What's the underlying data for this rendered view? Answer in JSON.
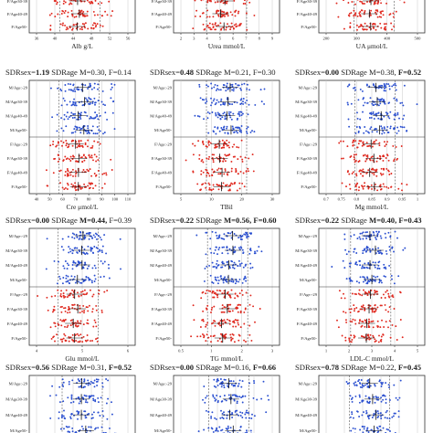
{
  "colors": {
    "male": "#2a4fd0",
    "female": "#e0281e",
    "frame": "#333333",
    "grid": "#c8c8c8",
    "ref": "#555555"
  },
  "row_labels": [
    "M/Age:-29",
    "M/Age30-39",
    "M/Age40-49",
    "M/Age50-",
    "F/Age:-29",
    "F/Age30-39",
    "F/Age40-49",
    "F/Age50-"
  ],
  "top_row_labels": [
    "F/Age30-39",
    "F/Age40-49",
    "F/Age50-"
  ],
  "bottom_row_labels": [
    "M/Age:-29",
    "M/Age30-39",
    "M/Age40-49",
    "M/Age50-"
  ],
  "chart_data": [
    {
      "type": "scatter",
      "panel": "Alb",
      "xlabel": "Alb",
      "unit": "g/L",
      "ticks": [
        "36",
        "40",
        "44",
        "48",
        "52",
        "56"
      ],
      "header": ""
    },
    {
      "type": "scatter",
      "panel": "Urea",
      "xlabel": "Urea",
      "unit": "mmol/L",
      "ticks": [
        "2",
        "3",
        "4",
        "5",
        "6",
        "7",
        "8",
        "9"
      ],
      "header": ""
    },
    {
      "type": "scatter",
      "panel": "UA",
      "xlabel": "UA",
      "unit": "μmol/L",
      "ticks": [
        "200",
        "300",
        "400",
        "500"
      ],
      "header": ""
    },
    {
      "type": "scatter",
      "panel": "Cre",
      "xlabel": "Cre",
      "unit": "μmol/L",
      "ticks": [
        "40",
        "50",
        "60",
        "70",
        "80",
        "90",
        "100",
        "110"
      ],
      "header": {
        "sex_label": "SDRsex=",
        "sex_value": "1.19",
        "age_label": "SDRage",
        "m_text": "M=0.30,",
        "f_text": "F=0.14"
      }
    },
    {
      "type": "scatter",
      "panel": "TBil",
      "xlabel": "TBil",
      "unit": "",
      "ticks": [
        "5",
        "10",
        "20",
        "30"
      ],
      "header": {
        "sex_label": "SDRsex=",
        "sex_value": "0.48",
        "age_label": "SDRage",
        "m_text": "M=0.21,",
        "f_text": "F=0.30"
      }
    },
    {
      "type": "scatter",
      "panel": "Mg",
      "xlabel": "Mg",
      "unit": "mmol/L",
      "ticks": [
        "0.7",
        "0.75",
        "0.8",
        "0.85",
        "0.9",
        "0.95",
        "1"
      ],
      "header": {
        "sex_label": "SDRsex=",
        "sex_value": "0.00",
        "age_label": "SDRage",
        "m_text": "M=0.38,",
        "f_text": "F=0.52"
      }
    },
    {
      "type": "scatter",
      "panel": "Glu",
      "xlabel": "Glu",
      "unit": "mmol/L",
      "ticks": [
        "4",
        "5",
        "6"
      ],
      "header": {
        "sex_label": "SDRsex=",
        "sex_value": "0.00",
        "age_label": "SDRage",
        "m_text": "M=0.44,",
        "f_text": "F=0.39"
      }
    },
    {
      "type": "scatter",
      "panel": "TG",
      "xlabel": "TG",
      "unit": "mmol/L",
      "ticks": [
        "0.5",
        "1",
        "2",
        "3"
      ],
      "header": {
        "sex_label": "SDRsex=",
        "sex_value": "0.22",
        "age_label": "SDRage",
        "m_text": "M=0.56,",
        "f_text": "F=0.60"
      }
    },
    {
      "type": "scatter",
      "panel": "LDL-C",
      "xlabel": "LDL-C",
      "unit": "mmol/L",
      "ticks": [
        "1",
        "2",
        "3",
        "4",
        "5"
      ],
      "header": {
        "sex_label": "SDRsex=",
        "sex_value": "0.22",
        "age_label": "SDRage",
        "m_text": "M=0.40,",
        "f_text": "F=0.43"
      }
    },
    {
      "type": "scatter",
      "panel": "row4-a",
      "xlabel": "",
      "unit": "",
      "ticks": [],
      "header": {
        "sex_label": "SDRsex=",
        "sex_value": "0.56",
        "age_label": "SDRage",
        "m_text": "M=0.31,",
        "f_text": "F=0.52"
      }
    },
    {
      "type": "scatter",
      "panel": "row4-b",
      "xlabel": "",
      "unit": "",
      "ticks": [],
      "header": {
        "sex_label": "SDRsex=",
        "sex_value": "0.00",
        "age_label": "SDRage",
        "m_text": "M=0.16,",
        "f_text": "F=0.66"
      }
    },
    {
      "type": "scatter",
      "panel": "row4-c",
      "xlabel": "",
      "unit": "",
      "ticks": [],
      "header": {
        "sex_label": "SDRsex=",
        "sex_value": "0.78",
        "age_label": "SDRage",
        "m_text": "M=0.22,",
        "f_text": "F=0.45"
      }
    }
  ]
}
